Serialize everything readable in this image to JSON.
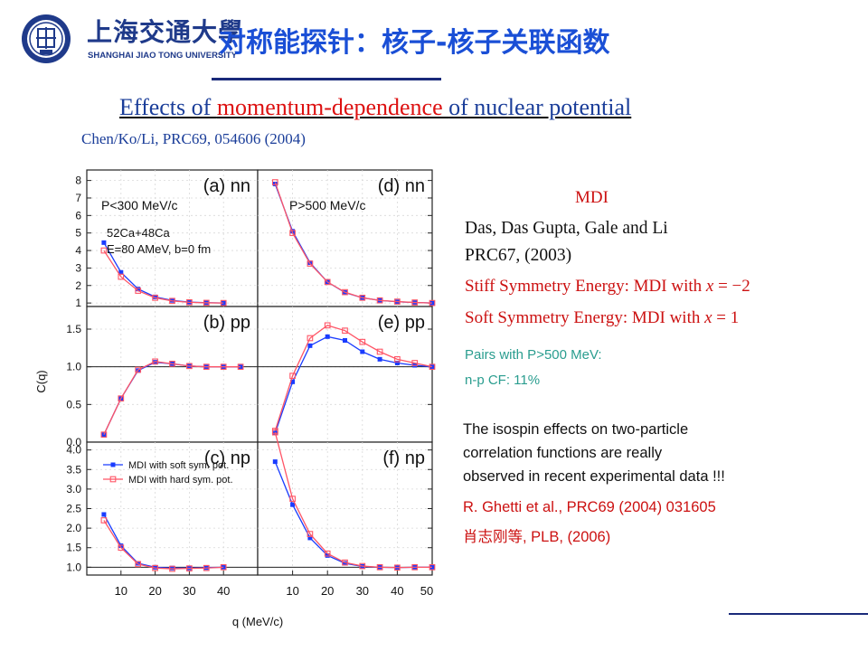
{
  "header": {
    "logo_cn": "上海交通大學",
    "logo_en": "SHANGHAI JIAO TONG UNIVERSITY",
    "title": "对称能探针：核子-核子关联函数"
  },
  "subtitle": {
    "part1": "Effects of ",
    "part2": "momentum-dependence ",
    "part3": "of nuclear potential"
  },
  "citation": "Chen/Ko/Li, PRC69, 054606 (2004)",
  "model": {
    "label": "MDI",
    "ref_authors": "Das, Das Gupta, Gale and Li",
    "ref_journal": "PRC67, (2003)",
    "stiff": {
      "text": "Stiff Symmetry Energy: MDI with",
      "var": "x",
      "eq": " = −2"
    },
    "soft": {
      "text": "Soft Symmetry Energy: MDI with",
      "var": "x",
      "eq": " = 1"
    }
  },
  "pairs": {
    "line1": "Pairs with P>500 MeV:",
    "line2": "n-p CF: 11%"
  },
  "note": {
    "line1": "The isospin effects on two-particle",
    "line2": "correlation functions are really",
    "line3": "observed in recent experimental data !!!"
  },
  "refs": {
    "ghetti": "R. Ghetti et al., PRC69 (2004) 031605",
    "xiao_cn": "肖志刚等",
    "xiao_rest": ", PLB, (2006)"
  },
  "colors": {
    "soft": "#1a3cff",
    "hard": "#ff5566"
  },
  "chart_data": {
    "type": "line",
    "xlabel": "q (MeV/c)",
    "ylabel": "C(q)",
    "legend": {
      "placement": "top-right",
      "entries": [
        "MDI with soft sym. pot.",
        "MDI with hard sym. pot."
      ]
    },
    "panel_text": {
      "a_low_p": "P<300 MeV/c",
      "a_reaction_1": "52Ca+48Ca",
      "a_reaction_2": "E=80 AMeV, b=0 fm",
      "d_high_p": "P>500 MeV/c"
    },
    "x_ticks": [
      "10",
      "20",
      "30",
      "40",
      "10",
      "20",
      "30",
      "40",
      "50"
    ],
    "x_range": [
      0,
      50
    ],
    "x": [
      5,
      10,
      15,
      20,
      25,
      30,
      35,
      40,
      45,
      50
    ],
    "rows": [
      {
        "name": "nn",
        "ylim": [
          0.8,
          8.6
        ],
        "y_ticks": [
          "1",
          "2",
          "3",
          "4",
          "5",
          "6",
          "7",
          "8"
        ],
        "y_values": [
          1,
          2,
          3,
          4,
          5,
          6,
          7,
          8
        ]
      },
      {
        "name": "pp",
        "ylim": [
          0.0,
          1.8
        ],
        "y_ticks": [
          "0.0",
          "0.5",
          "1.0",
          "1.5"
        ],
        "y_values": [
          0.0,
          0.5,
          1.0,
          1.5
        ]
      },
      {
        "name": "np",
        "ylim": [
          0.8,
          4.2
        ],
        "y_ticks": [
          "1.0",
          "1.5",
          "2.0",
          "2.5",
          "3.0",
          "3.5",
          "4.0"
        ],
        "y_values": [
          1.0,
          1.5,
          2.0,
          2.5,
          3.0,
          3.5,
          4.0
        ]
      }
    ],
    "panels": [
      {
        "label": "(a) nn",
        "row": 0,
        "col": 0,
        "series": [
          {
            "name": "MDI with soft sym. pot.",
            "values": [
              4.45,
              2.75,
              1.8,
              1.35,
              1.15,
              1.05,
              1.02,
              1.0
            ]
          },
          {
            "name": "MDI with hard sym. pot.",
            "values": [
              4.0,
              2.5,
              1.7,
              1.3,
              1.12,
              1.04,
              1.01,
              1.0
            ]
          }
        ]
      },
      {
        "label": "(d) nn",
        "row": 0,
        "col": 1,
        "series": [
          {
            "name": "MDI with soft sym. pot.",
            "values": [
              7.8,
              5.1,
              3.3,
              2.2,
              1.6,
              1.3,
              1.15,
              1.07,
              1.03,
              1.0
            ]
          },
          {
            "name": "MDI with hard sym. pot.",
            "values": [
              7.9,
              5.0,
              3.25,
              2.2,
              1.62,
              1.3,
              1.15,
              1.08,
              1.03,
              1.0
            ]
          }
        ]
      },
      {
        "label": "(b) pp",
        "row": 1,
        "col": 0,
        "series": [
          {
            "name": "MDI with soft sym. pot.",
            "values": [
              0.1,
              0.58,
              0.95,
              1.06,
              1.04,
              1.01,
              1.0,
              1.0,
              1.0
            ]
          },
          {
            "name": "MDI with hard sym. pot.",
            "values": [
              0.1,
              0.58,
              0.96,
              1.07,
              1.04,
              1.01,
              1.0,
              1.0,
              1.0
            ]
          }
        ]
      },
      {
        "label": "(e) pp",
        "row": 1,
        "col": 1,
        "series": [
          {
            "name": "MDI with soft sym. pot.",
            "values": [
              0.12,
              0.8,
              1.28,
              1.4,
              1.35,
              1.2,
              1.1,
              1.05,
              1.02,
              1.0
            ]
          },
          {
            "name": "MDI with hard sym. pot.",
            "values": [
              0.15,
              0.88,
              1.38,
              1.55,
              1.48,
              1.33,
              1.2,
              1.1,
              1.05,
              1.0
            ]
          }
        ]
      },
      {
        "label": "(c) np",
        "row": 2,
        "col": 0,
        "series": [
          {
            "name": "MDI with soft sym. pot.",
            "values": [
              2.35,
              1.55,
              1.1,
              1.0,
              0.98,
              0.98,
              0.99,
              1.0
            ]
          },
          {
            "name": "MDI with hard sym. pot.",
            "values": [
              2.2,
              1.5,
              1.08,
              0.98,
              0.96,
              0.97,
              0.98,
              1.0
            ]
          }
        ]
      },
      {
        "label": "(f) np",
        "row": 2,
        "col": 1,
        "series": [
          {
            "name": "MDI with soft sym. pot.",
            "values": [
              3.7,
              2.6,
              1.75,
              1.3,
              1.1,
              1.02,
              1.0,
              0.99,
              1.0,
              1.0
            ]
          },
          {
            "name": "MDI with hard sym. pot.",
            "values": [
              4.45,
              2.75,
              1.85,
              1.35,
              1.12,
              1.03,
              1.0,
              0.99,
              1.0,
              1.0
            ]
          }
        ]
      }
    ]
  }
}
